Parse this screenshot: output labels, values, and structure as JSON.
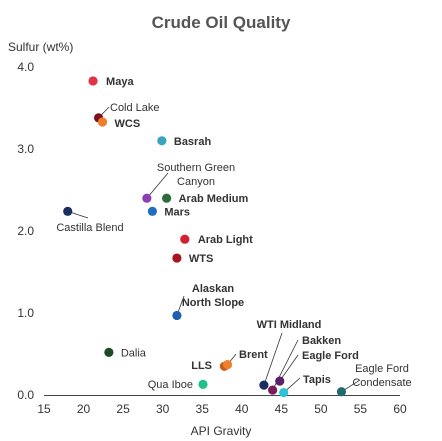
{
  "chart_data": {
    "type": "scatter",
    "title": "Crude Oil Quality",
    "xlabel": "API Gravity",
    "ylabel": "Sulfur (wt%)",
    "xlim": [
      15,
      60
    ],
    "ylim": [
      0,
      4
    ],
    "xticks": [
      "15",
      "20",
      "25",
      "30",
      "35",
      "40",
      "45",
      "50",
      "55",
      "60"
    ],
    "yticks": [
      "0.0",
      "1.0",
      "2.0",
      "3.0",
      "4.0"
    ],
    "grid": false,
    "legend": "none",
    "points": [
      {
        "name": "Maya",
        "x": 21.2,
        "y": 3.83,
        "color": "#e03346",
        "bold": true
      },
      {
        "name": "Cold Lake",
        "x": 21.9,
        "y": 3.38,
        "color": "#7a1020",
        "bold": false
      },
      {
        "name": "WCS",
        "x": 22.4,
        "y": 3.33,
        "color": "#ef7f2b",
        "bold": true
      },
      {
        "name": "Basrah",
        "x": 29.9,
        "y": 3.1,
        "color": "#3aa4bf",
        "bold": true
      },
      {
        "name": "Southern Green Canyon",
        "x": 28.0,
        "y": 2.4,
        "color": "#8a3fb5",
        "bold": false
      },
      {
        "name": "Arab Medium",
        "x": 30.5,
        "y": 2.4,
        "color": "#2e6b3a",
        "bold": true
      },
      {
        "name": "Mars",
        "x": 28.7,
        "y": 2.24,
        "color": "#1f6fc1",
        "bold": true
      },
      {
        "name": "Castilla Blend",
        "x": 18.0,
        "y": 2.24,
        "color": "#1b2f5e",
        "bold": false
      },
      {
        "name": "Arab Light",
        "x": 32.8,
        "y": 1.9,
        "color": "#d4202e",
        "bold": true
      },
      {
        "name": "WTS",
        "x": 31.8,
        "y": 1.67,
        "color": "#a8141f",
        "bold": true
      },
      {
        "name": "Alaskan North Slope",
        "x": 31.8,
        "y": 0.97,
        "color": "#1f5fb0",
        "bold": true
      },
      {
        "name": "Dalia",
        "x": 23.2,
        "y": 0.52,
        "color": "#1f4a27",
        "bold": false
      },
      {
        "name": "LLS",
        "x": 37.8,
        "y": 0.35,
        "color": "#c65a1c",
        "bold": true
      },
      {
        "name": "Brent",
        "x": 38.2,
        "y": 0.37,
        "color": "#ef7f2b",
        "bold": true
      },
      {
        "name": "Qua Iboe",
        "x": 35.1,
        "y": 0.13,
        "color": "#22c18b",
        "bold": false
      },
      {
        "name": "WTI Midland",
        "x": 42.8,
        "y": 0.12,
        "color": "#1b2f5e",
        "bold": true
      },
      {
        "name": "Bakken",
        "x": 43.9,
        "y": 0.06,
        "color": "#7a1c5c",
        "bold": true
      },
      {
        "name": "Eagle Ford",
        "x": 44.8,
        "y": 0.17,
        "color": "#5a2068",
        "bold": true
      },
      {
        "name": "Tapis",
        "x": 45.3,
        "y": 0.03,
        "color": "#2ac4d6",
        "bold": true
      },
      {
        "name": "Eagle Ford Condensate",
        "x": 52.6,
        "y": 0.04,
        "color": "#1f6a6e",
        "bold": false
      }
    ]
  }
}
